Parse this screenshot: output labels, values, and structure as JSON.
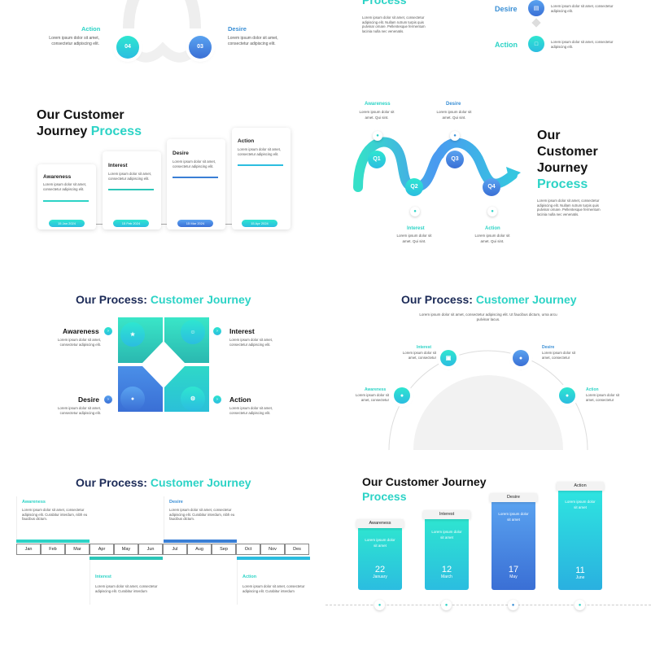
{
  "s1": {
    "left_label": "Action",
    "left_text": "Lorem ipsum dolor sit amet, consectetur adipiscing elit.",
    "right_label": "Desire",
    "right_text": "Lorem ipsum dolor sit amet, consectetur adipiscing elit.",
    "c_left": "04",
    "c_right": "03"
  },
  "s2": {
    "title": "Process",
    "body": "Lorem ipsum dolor sit amet, consectetur adipiscing elit. Nullam rutrum turpis quis pulvinar ornare. Pellentesque fermentum lacinia nulla nec venenatis.",
    "desire_label": "Desire",
    "desire_text": "Lorem ipsum dolor sit amet, consectetur adipiscing elit.",
    "action_label": "Action",
    "action_text": "Lorem ipsum dolor sit amet, consectetur adipiscing elit."
  },
  "s3": {
    "title1": "Our Customer",
    "title2": "Journey",
    "title3": "Process",
    "cards": [
      {
        "label": "Awareness",
        "text": "Lorem ipsum dolor sit amet, consectetur adipiscing elit.",
        "date": "15 Jan 2024"
      },
      {
        "label": "Interest",
        "text": "Lorem ipsum dolor sit amet, consectetur adipiscing elit.",
        "date": "15 Feb 2024"
      },
      {
        "label": "Desire",
        "text": "Lorem ipsum dolor sit amet, consectetur adipiscing elit.",
        "date": "15 Mar 2024"
      },
      {
        "label": "Action",
        "text": "Lorem ipsum dolor sit amet, consectetur adipiscing elit.",
        "date": "15 Apr 2024"
      }
    ]
  },
  "s4": {
    "awareness": "Awareness",
    "awareness_text": "Lorem ipsum dolor sit amet. Qui sint.",
    "desire": "Desire",
    "desire_text": "Lorem ipsum dolor sit amet. Qui sint.",
    "interest": "Interest",
    "interest_text": "Lorem ipsum dolor sit amet. Qui sint.",
    "action": "Action",
    "action_text": "Lorem ipsum dolor sit amet. Qui sint.",
    "q1": "Q1",
    "q2": "Q2",
    "q3": "Q3",
    "q4": "Q4",
    "title1": "Our",
    "title2": "Customer",
    "title3": "Journey",
    "title4": "Process",
    "body": "Lorem ipsum dolor sit amet, consectetur adipiscing elit. Nullam rutrum turpis quis pulvinar ornare. Pellentesque fermentum lacinia nulla nec venenatis."
  },
  "s5": {
    "title_a": "Our Process: ",
    "title_b": "Customer Journey",
    "awareness": "Awareness",
    "interest": "Interest",
    "desire": "Desire",
    "action": "Action",
    "text": "Lorem ipsum dolor sit amet, consectetur adipiscing elit."
  },
  "s6": {
    "title_a": "Our Process: ",
    "title_b": "Customer Journey",
    "subtitle": "Lorem ipsum dolor sit amet, consectetur adipiscing elit. Ut faucibus dictum, urna arcu pulvinar lacus.",
    "interest": "Interest",
    "desire": "Desire",
    "awareness": "Awareness",
    "action": "Action",
    "text": "Lorem ipsum dolor sit amet, consectetur"
  },
  "s7": {
    "title_a": "Our Process: ",
    "title_b": "Customer Journey",
    "months": [
      "Jan",
      "Feb",
      "Mar",
      "Apr",
      "May",
      "Jun",
      "Jul",
      "Aug",
      "Sep",
      "Oct",
      "Nov",
      "Des"
    ],
    "awareness": "Awareness",
    "desire": "Desire",
    "interest": "Interest",
    "action": "Action",
    "text": "Lorem ipsum dolor sit amet, consectetur adipiscing elit. Curabitur interdum, nibh eu faucibus dictum.",
    "text_short": "Lorem ipsum dolor sit amet, consectetur adipiscing elit. Curabitur interdum"
  },
  "s8": {
    "title1": "Our Customer Journey",
    "title2": "Process",
    "bars": [
      {
        "label": "Awareness",
        "text": "Lorem ipsum dolor sit amet",
        "num": "22",
        "month": "January"
      },
      {
        "label": "Interest",
        "text": "Lorem ipsum dolor sit amet",
        "num": "12",
        "month": "March"
      },
      {
        "label": "Desire",
        "text": "Lorem ipsum dolor sit amet",
        "num": "17",
        "month": "May"
      },
      {
        "label": "Action",
        "text": "Lorem ipsum dolor sit amet",
        "num": "11",
        "month": "June"
      }
    ]
  }
}
